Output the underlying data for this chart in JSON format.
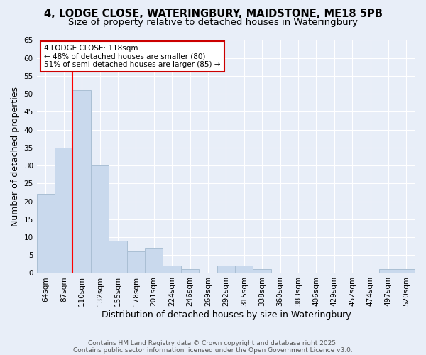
{
  "title_line1": "4, LODGE CLOSE, WATERINGBURY, MAIDSTONE, ME18 5PB",
  "title_line2": "Size of property relative to detached houses in Wateringbury",
  "categories": [
    "64sqm",
    "87sqm",
    "110sqm",
    "132sqm",
    "155sqm",
    "178sqm",
    "201sqm",
    "224sqm",
    "246sqm",
    "269sqm",
    "292sqm",
    "315sqm",
    "338sqm",
    "360sqm",
    "383sqm",
    "406sqm",
    "429sqm",
    "452sqm",
    "474sqm",
    "497sqm",
    "520sqm"
  ],
  "values": [
    22,
    35,
    51,
    30,
    9,
    6,
    7,
    2,
    1,
    0,
    2,
    2,
    1,
    0,
    0,
    0,
    0,
    0,
    0,
    1,
    1
  ],
  "bar_color": "#c9d9ed",
  "bar_edge_color": "#aabfd4",
  "red_line_index": 2,
  "annotation_line1": "4 LODGE CLOSE: 118sqm",
  "annotation_line2": "← 48% of detached houses are smaller (80)",
  "annotation_line3": "51% of semi-detached houses are larger (85) →",
  "annotation_box_color": "white",
  "annotation_box_edge_color": "#cc0000",
  "ylabel": "Number of detached properties",
  "xlabel": "Distribution of detached houses by size in Wateringbury",
  "footer_line1": "Contains HM Land Registry data © Crown copyright and database right 2025.",
  "footer_line2": "Contains public sector information licensed under the Open Government Licence v3.0.",
  "ylim": [
    0,
    65
  ],
  "yticks": [
    0,
    5,
    10,
    15,
    20,
    25,
    30,
    35,
    40,
    45,
    50,
    55,
    60,
    65
  ],
  "bg_color": "#e8eef8",
  "grid_color": "#ffffff",
  "title_fontsize": 10.5,
  "subtitle_fontsize": 9.5,
  "tick_fontsize": 7.5,
  "label_fontsize": 9,
  "footer_fontsize": 6.5
}
